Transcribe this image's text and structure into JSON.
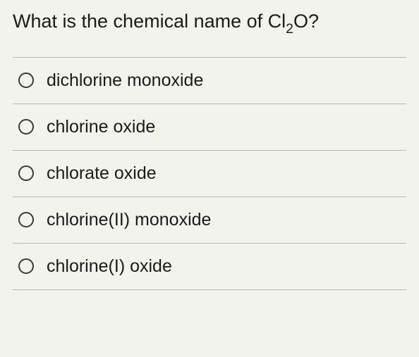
{
  "question": {
    "prefix": "What is the chemical name of Cl",
    "subscript": "2",
    "suffix": "O?"
  },
  "options": [
    {
      "label": "dichlorine monoxide"
    },
    {
      "label": "chlorine oxide"
    },
    {
      "label": "chlorate oxide"
    },
    {
      "label": "chlorine(II) monoxide"
    },
    {
      "label": "chlorine(I) oxide"
    }
  ],
  "colors": {
    "background": "#f3f3ee",
    "text": "#1a1a1a",
    "border": "#b7b7b2",
    "radio_border": "#3a3a3a"
  },
  "typography": {
    "question_fontsize": 27,
    "option_fontsize": 25,
    "font_family": "Helvetica Neue, Arial, sans-serif"
  }
}
